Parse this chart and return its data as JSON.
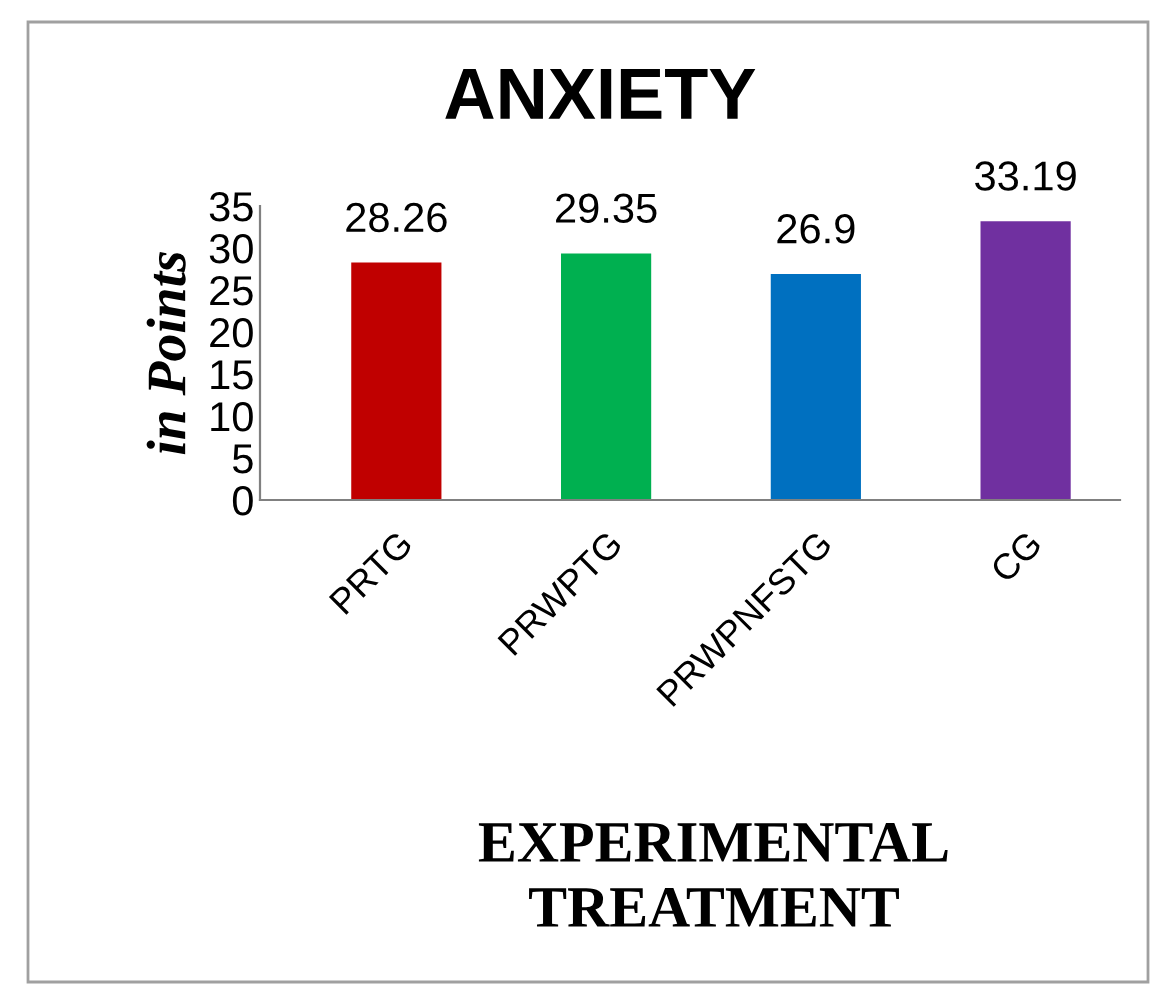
{
  "chart_data": {
    "type": "bar",
    "title": "ANXIETY",
    "xlabel": "EXPERIMENTAL\nTREATMENT",
    "ylabel": "in Points",
    "categories": [
      "PRTG",
      "PRWPTG",
      "PRWPNFSTG",
      "CG"
    ],
    "values": [
      28.26,
      29.35,
      26.9,
      33.19
    ],
    "colors": [
      "#c00000",
      "#00b050",
      "#0070c0",
      "#7030a0"
    ],
    "ylim": [
      0,
      35
    ],
    "yticks": [
      0,
      5,
      10,
      15,
      20,
      25,
      30,
      35
    ],
    "grid": false,
    "data_labels": true
  }
}
